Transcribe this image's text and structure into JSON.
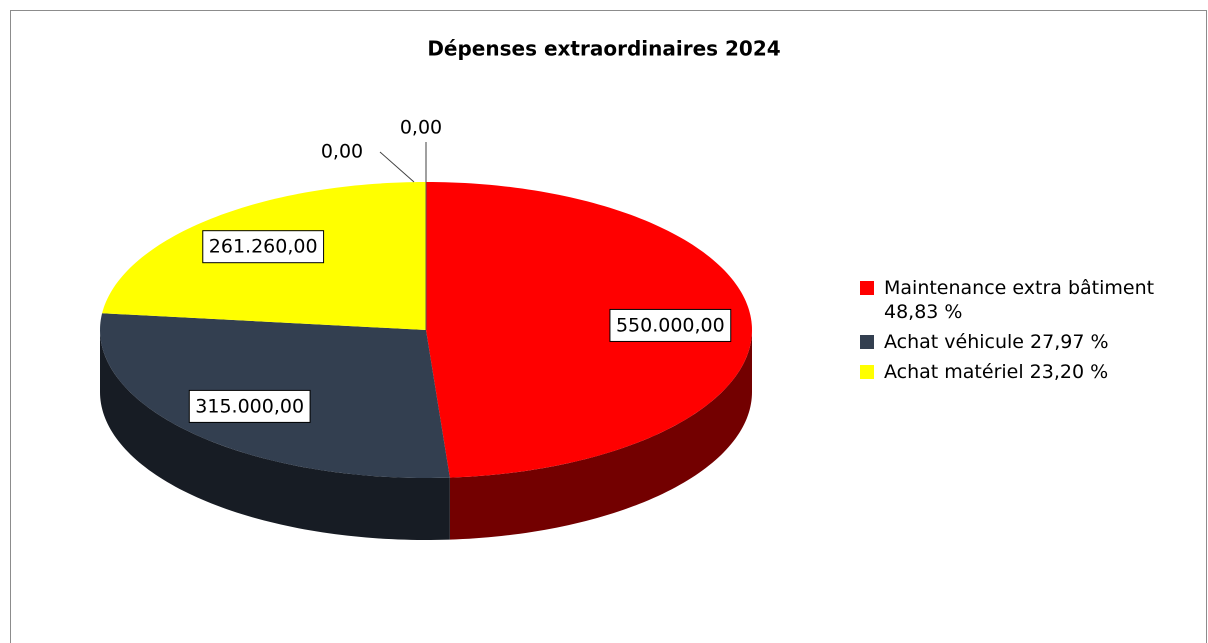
{
  "chart_data": {
    "type": "pie3d",
    "title": "Dépenses extraordinaires 2024",
    "categories": [
      "Maintenance extra bâtiment 48,83 %",
      "Achat véhicule 27,97 %",
      "Achat matériel 23,20 %",
      null,
      null
    ],
    "values": [
      550000,
      315000,
      261260,
      0,
      0
    ],
    "value_labels": [
      "550.000,00",
      "315.000,00",
      "261.260,00",
      "0,00",
      "0,00"
    ],
    "colors": [
      "#ff0000",
      "#333f50",
      "#ffff00",
      "#7f7f7f",
      "#7f7f7f"
    ],
    "legend": "right"
  }
}
